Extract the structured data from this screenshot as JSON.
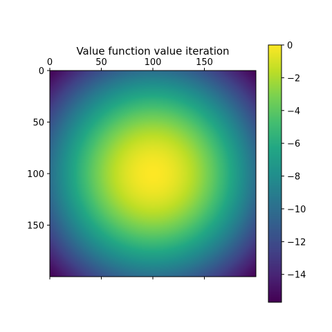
{
  "chart_data": {
    "type": "heatmap",
    "title": "Value function value iteration",
    "xlabel": "",
    "ylabel": "",
    "grid": false,
    "colormap": "viridis",
    "shape": [
      200,
      200
    ],
    "x_range": [
      0,
      200
    ],
    "y_range": [
      0,
      200
    ],
    "x_axis_position": "top",
    "x_ticks": [
      0,
      50,
      100,
      150
    ],
    "x_tick_labels": [
      "0",
      "50",
      "100",
      "150"
    ],
    "y_ticks": [
      0,
      50,
      100,
      150
    ],
    "y_tick_labels": [
      "0",
      "50",
      "100",
      "150"
    ],
    "value_range": [
      -15.7,
      0
    ],
    "peak": {
      "row": 100,
      "col": 100,
      "value": 0
    },
    "corner_value": -15.7,
    "edge_midpoint_value": -10,
    "colorbar": {
      "ticks": [
        0,
        -2,
        -4,
        -6,
        -8,
        -10,
        -12,
        -14
      ],
      "tick_labels": [
        "0",
        "−2",
        "−4",
        "−6",
        "−8",
        "−10",
        "−12",
        "−14"
      ],
      "range": [
        -15.7,
        0
      ]
    }
  }
}
